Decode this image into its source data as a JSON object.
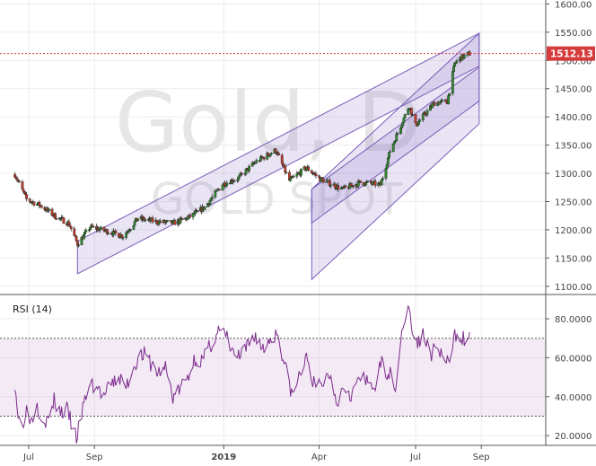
{
  "chart_data": [
    {
      "type": "candlestick",
      "watermark": {
        "symbol": "Gold, D",
        "name": "GOLD SPOT"
      },
      "last_price": "1512.13",
      "last_price_value": 1512.13,
      "price_axis": {
        "ylim": [
          1087,
          1607
        ],
        "ticks": [
          "1100.00",
          "1150.00",
          "1200.00",
          "1250.00",
          "1300.00",
          "1350.00",
          "1400.00",
          "1450.00",
          "1500.00",
          "1550.00",
          "1600.00"
        ],
        "tick_values": [
          1100,
          1150,
          1200,
          1250,
          1300,
          1350,
          1400,
          1450,
          1500,
          1550,
          1600
        ]
      },
      "x_axis": {
        "labels": [
          "Jul",
          "Sep",
          "2019",
          "Apr",
          "Jul",
          "Sep"
        ],
        "dates": [
          "2018-07-01",
          "2018-09-01",
          "2019-01-01",
          "2019-04-01",
          "2019-07-01",
          "2019-09-01"
        ]
      },
      "daily_close_anchors": [
        {
          "date": "2018-06-18",
          "close": 1298
        },
        {
          "date": "2018-06-29",
          "close": 1254
        },
        {
          "date": "2018-07-12",
          "close": 1243
        },
        {
          "date": "2018-07-26",
          "close": 1224
        },
        {
          "date": "2018-08-08",
          "close": 1211
        },
        {
          "date": "2018-08-16",
          "close": 1175
        },
        {
          "date": "2018-08-28",
          "close": 1205
        },
        {
          "date": "2018-09-14",
          "close": 1197
        },
        {
          "date": "2018-09-28",
          "close": 1189
        },
        {
          "date": "2018-10-12",
          "close": 1220
        },
        {
          "date": "2018-10-31",
          "close": 1214
        },
        {
          "date": "2018-11-15",
          "close": 1212
        },
        {
          "date": "2018-11-29",
          "close": 1222
        },
        {
          "date": "2018-12-14",
          "close": 1240
        },
        {
          "date": "2018-12-31",
          "close": 1281
        },
        {
          "date": "2019-01-15",
          "close": 1292
        },
        {
          "date": "2019-01-31",
          "close": 1320
        },
        {
          "date": "2019-02-19",
          "close": 1341
        },
        {
          "date": "2019-03-04",
          "close": 1287
        },
        {
          "date": "2019-03-20",
          "close": 1310
        },
        {
          "date": "2019-04-02",
          "close": 1290
        },
        {
          "date": "2019-04-23",
          "close": 1272
        },
        {
          "date": "2019-05-10",
          "close": 1284
        },
        {
          "date": "2019-05-29",
          "close": 1280
        },
        {
          "date": "2019-06-07",
          "close": 1340
        },
        {
          "date": "2019-06-20",
          "close": 1398
        },
        {
          "date": "2019-06-25",
          "close": 1420
        },
        {
          "date": "2019-07-01",
          "close": 1385
        },
        {
          "date": "2019-07-12",
          "close": 1410
        },
        {
          "date": "2019-07-19",
          "close": 1425
        },
        {
          "date": "2019-07-31",
          "close": 1427
        },
        {
          "date": "2019-08-07",
          "close": 1495
        },
        {
          "date": "2019-08-13",
          "close": 1505
        },
        {
          "date": "2019-08-21",
          "close": 1512
        }
      ],
      "channels": [
        {
          "points": [
            [
              "2018-08-16",
              1180
            ],
            [
              "2019-08-30",
              1548
            ]
          ],
          "width_price": 58
        },
        {
          "points": [
            [
              "2019-03-25",
              1272
            ],
            [
              "2019-08-30",
              1548
            ]
          ],
          "width_price": 160
        },
        {
          "points": [
            [
              "2019-03-25",
              1272
            ],
            [
              "2019-08-30",
              1488
            ]
          ],
          "width_price": 60
        }
      ]
    },
    {
      "type": "line",
      "title": "RSI (14)",
      "ylim": [
        15,
        92
      ],
      "ticks": [
        "20.0000",
        "40.0000",
        "60.0000",
        "80.0000"
      ],
      "tick_values": [
        20,
        40,
        60,
        80
      ],
      "overbought": 70,
      "oversold": 30,
      "series": [
        {
          "values": [
            {
              "date": "2018-06-18",
              "v": 48
            },
            {
              "date": "2018-06-21",
              "v": 30
            },
            {
              "date": "2018-06-25",
              "v": 24
            },
            {
              "date": "2018-06-28",
              "v": 34
            },
            {
              "date": "2018-07-03",
              "v": 28
            },
            {
              "date": "2018-07-09",
              "v": 36
            },
            {
              "date": "2018-07-13",
              "v": 30
            },
            {
              "date": "2018-07-19",
              "v": 27
            },
            {
              "date": "2018-07-25",
              "v": 38
            },
            {
              "date": "2018-07-31",
              "v": 32
            },
            {
              "date": "2018-08-06",
              "v": 33
            },
            {
              "date": "2018-08-10",
              "v": 27
            },
            {
              "date": "2018-08-15",
              "v": 18
            },
            {
              "date": "2018-08-20",
              "v": 31
            },
            {
              "date": "2018-08-27",
              "v": 47
            },
            {
              "date": "2018-09-03",
              "v": 45
            },
            {
              "date": "2018-09-10",
              "v": 40
            },
            {
              "date": "2018-09-17",
              "v": 46
            },
            {
              "date": "2018-09-24",
              "v": 50
            },
            {
              "date": "2018-10-01",
              "v": 45
            },
            {
              "date": "2018-10-10",
              "v": 58
            },
            {
              "date": "2018-10-17",
              "v": 62
            },
            {
              "date": "2018-10-24",
              "v": 57
            },
            {
              "date": "2018-10-31",
              "v": 52
            },
            {
              "date": "2018-11-07",
              "v": 55
            },
            {
              "date": "2018-11-14",
              "v": 40
            },
            {
              "date": "2018-11-21",
              "v": 44
            },
            {
              "date": "2018-11-28",
              "v": 50
            },
            {
              "date": "2018-12-05",
              "v": 60
            },
            {
              "date": "2018-12-12",
              "v": 58
            },
            {
              "date": "2018-12-19",
              "v": 66
            },
            {
              "date": "2018-12-27",
              "v": 74
            },
            {
              "date": "2019-01-03",
              "v": 71
            },
            {
              "date": "2019-01-10",
              "v": 62
            },
            {
              "date": "2019-01-17",
              "v": 60
            },
            {
              "date": "2019-01-24",
              "v": 66
            },
            {
              "date": "2019-01-31",
              "v": 72
            },
            {
              "date": "2019-02-07",
              "v": 64
            },
            {
              "date": "2019-02-14",
              "v": 70
            },
            {
              "date": "2019-02-21",
              "v": 73
            },
            {
              "date": "2019-02-28",
              "v": 55
            },
            {
              "date": "2019-03-07",
              "v": 40
            },
            {
              "date": "2019-03-14",
              "v": 52
            },
            {
              "date": "2019-03-21",
              "v": 60
            },
            {
              "date": "2019-03-28",
              "v": 44
            },
            {
              "date": "2019-04-04",
              "v": 47
            },
            {
              "date": "2019-04-11",
              "v": 52
            },
            {
              "date": "2019-04-18",
              "v": 38
            },
            {
              "date": "2019-04-25",
              "v": 46
            },
            {
              "date": "2019-05-02",
              "v": 41
            },
            {
              "date": "2019-05-09",
              "v": 50
            },
            {
              "date": "2019-05-16",
              "v": 47
            },
            {
              "date": "2019-05-23",
              "v": 45
            },
            {
              "date": "2019-05-30",
              "v": 57
            },
            {
              "date": "2019-06-06",
              "v": 52
            },
            {
              "date": "2019-06-13",
              "v": 46
            },
            {
              "date": "2019-06-17",
              "v": 72
            },
            {
              "date": "2019-06-20",
              "v": 79
            },
            {
              "date": "2019-06-25",
              "v": 84
            },
            {
              "date": "2019-07-01",
              "v": 66
            },
            {
              "date": "2019-07-08",
              "v": 72
            },
            {
              "date": "2019-07-15",
              "v": 62
            },
            {
              "date": "2019-07-22",
              "v": 65
            },
            {
              "date": "2019-07-29",
              "v": 58
            },
            {
              "date": "2019-08-02",
              "v": 56
            },
            {
              "date": "2019-08-06",
              "v": 70
            },
            {
              "date": "2019-08-09",
              "v": 73
            },
            {
              "date": "2019-08-14",
              "v": 71
            },
            {
              "date": "2019-08-19",
              "v": 67
            },
            {
              "date": "2019-08-21",
              "v": 69
            }
          ]
        }
      ]
    }
  ],
  "colors": {
    "up": "#2e8b2e",
    "down": "#c0392b",
    "channel_stroke": "#7a5cb8",
    "channel_fill": "rgba(140,110,200,0.18)",
    "rsi_line": "#7b2b8b",
    "rsi_band": "rgba(200,160,210,0.22)",
    "last_price_bg": "#d63b3b",
    "last_price_line": "#d63b3b"
  }
}
